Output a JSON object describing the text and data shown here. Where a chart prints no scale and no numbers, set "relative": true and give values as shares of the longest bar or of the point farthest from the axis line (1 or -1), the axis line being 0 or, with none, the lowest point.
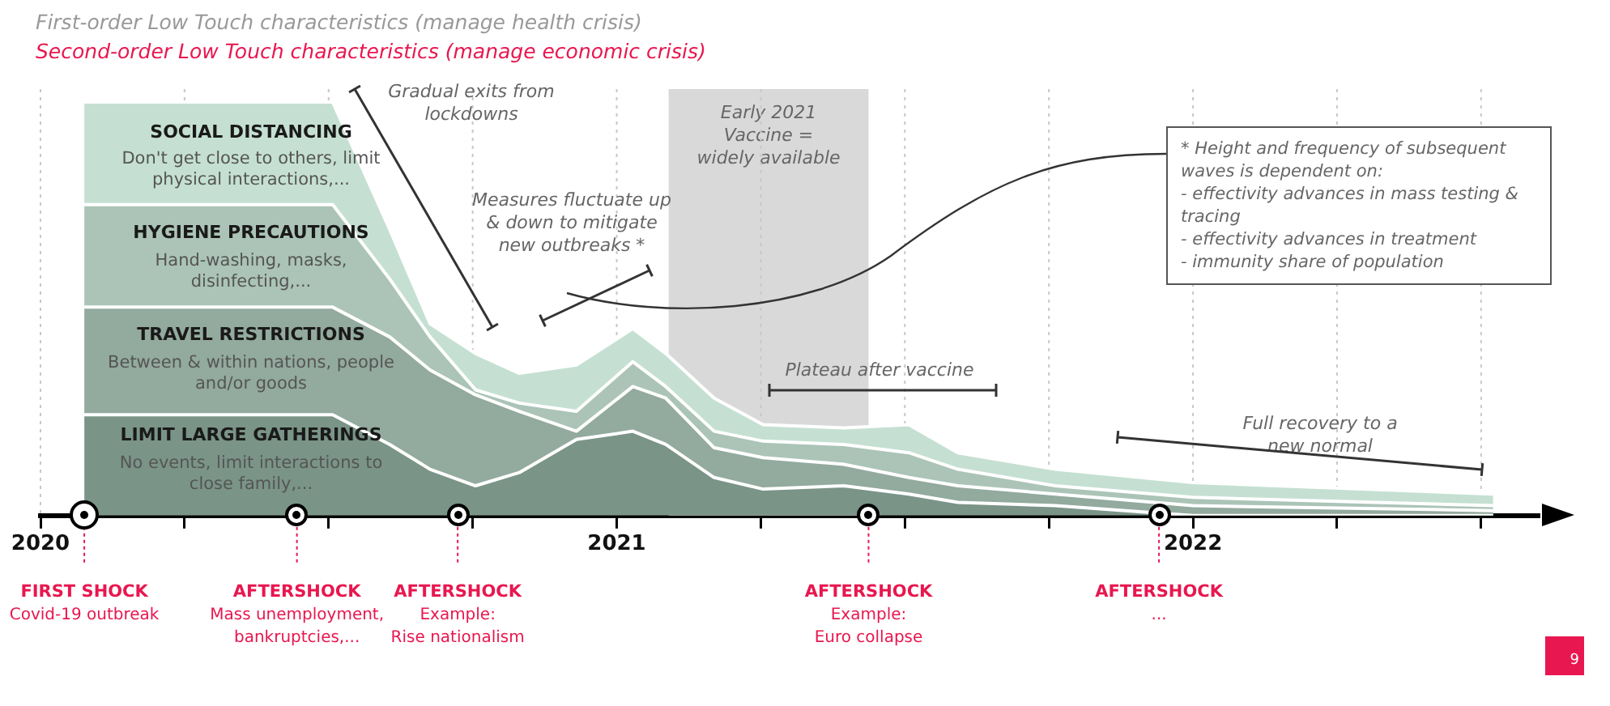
{
  "chart_data": {
    "type": "area",
    "stacked": true,
    "relative": true,
    "title": "First-order Low Touch characteristics (manage health crisis)",
    "subtitle": "Second-order Low Touch characteristics (manage economic crisis)",
    "x": [
      2020.076,
      2020.507,
      2020.606,
      2020.676,
      2020.755,
      2020.831,
      2020.93,
      2021.028,
      2021.085,
      2021.169,
      2021.254,
      2021.394,
      2021.507,
      2021.592,
      2021.761,
      2022.0,
      2022.521
    ],
    "xlim": [
      2020,
      2022.6
    ],
    "xticks": [
      2020,
      {
        "value": 2020.25,
        "label": null
      },
      {
        "value": 2020.5,
        "label": null
      },
      {
        "value": 2020.75,
        "label": null
      },
      2021,
      {
        "value": 2021.25,
        "label": null
      },
      {
        "value": 2021.5,
        "label": null
      },
      {
        "value": 2021.75,
        "label": null
      },
      2022,
      {
        "value": 2022.25,
        "label": null
      },
      {
        "value": 2022.5,
        "label": null
      }
    ],
    "grid": "x",
    "legend": false,
    "series": [
      {
        "name": "LIMIT LARGE GATHERINGS",
        "color": "#7a9488",
        "values": [
          0.244,
          0.244,
          0.172,
          0.112,
          0.072,
          0.104,
          0.184,
          0.204,
          0.172,
          0.092,
          0.064,
          0.072,
          0.052,
          0.032,
          0.024,
          0,
          0
        ]
      },
      {
        "name": "TRAVEL RESTRICTIONS",
        "color": "#93aa9e",
        "values": [
          0.26,
          0.26,
          0.26,
          0.24,
          0.22,
          0.148,
          0.02,
          0.108,
          0.112,
          0.072,
          0.076,
          0.052,
          0.04,
          0.04,
          0.028,
          0.024,
          0.012
        ]
      },
      {
        "name": "HYGIENE PRECAUTIONS",
        "color": "#abc4b7",
        "values": [
          0.248,
          0.248,
          0.14,
          0.08,
          0.012,
          0.02,
          0.048,
          0.06,
          0.028,
          0.04,
          0.04,
          0.048,
          0.06,
          0.04,
          0.02,
          0.02,
          0.012
        ]
      },
      {
        "name": "SOCIAL DISTANCING",
        "color": "#c5e0d2",
        "values": [
          0.248,
          0.248,
          0.12,
          0.032,
          0.088,
          0.072,
          0.112,
          0.08,
          0.08,
          0.08,
          0.04,
          0.04,
          0.068,
          0.04,
          0.04,
          0.036,
          0.028
        ]
      }
    ],
    "bands": [
      {
        "axis": "x",
        "from": 2021.09,
        "to": 2021.437,
        "label": "Early 2021\nVaccine =\nwidely available",
        "color": "#d9d9d9"
      }
    ],
    "ref_lines": [
      {
        "axis": "x",
        "value": 2020.076,
        "label": "FIRST SHOCK\nCovid-19 outbreak",
        "color": "#e8174f",
        "line_style": "dashed"
      },
      {
        "axis": "x",
        "value": 2020.445,
        "label": "AFTERSHOCK\nMass unemployment,\nbankruptcies,...",
        "color": "#e8174f",
        "line_style": "dashed"
      },
      {
        "axis": "x",
        "value": 2020.724,
        "label": "AFTERSHOCK\nExample:\nRise nationalism",
        "color": "#e8174f",
        "line_style": "dashed"
      },
      {
        "axis": "x",
        "value": 2021.437,
        "label": "AFTERSHOCK\nExample:\nEuro collapse",
        "color": "#e8174f",
        "line_style": "dashed"
      },
      {
        "axis": "x",
        "value": 2021.941,
        "label": "AFTERSHOCK\n...",
        "color": "#e8174f",
        "line_style": "dashed"
      }
    ],
    "annotations": [
      "Don't get close to others, limit physical interactions,...",
      "Hand-washing, masks, disinfecting,...",
      "Between & within nations, people and/or goods",
      "No events, limit interactions to close family,...",
      "Gradual exits from lockdowns",
      "Measures fluctuate up & down to mitigate new outbreaks *",
      "Plateau after vaccine",
      "Full recovery to a new normal",
      "* Height and frequency of subsequent waves is dependent on:\n-  effectivity advances in mass testing & tracing\n-  effectivity advances in treatment\n-  immunity share of population",
      "9"
    ]
  }
}
